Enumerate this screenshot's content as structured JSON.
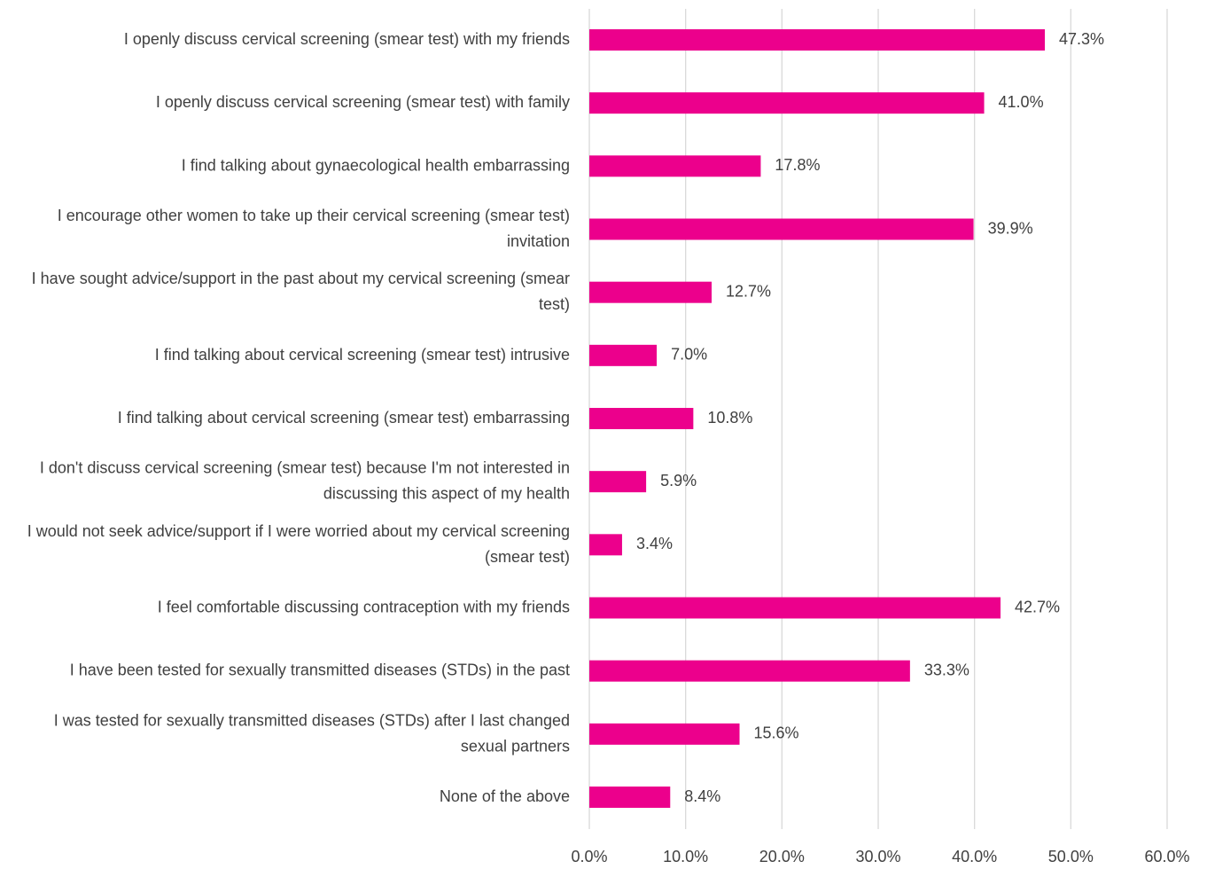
{
  "chart_data": {
    "type": "bar",
    "orientation": "horizontal",
    "categories": [
      "I openly discuss cervical screening (smear test) with my friends",
      "I openly discuss cervical screening (smear test) with family",
      "I find talking about gynaecological health embarrassing",
      "I encourage other women to take up their cervical screening (smear test) invitation",
      "I have sought advice/support in the past about my cervical screening (smear test)",
      "I find talking about cervical screening (smear test) intrusive",
      "I find talking about cervical screening (smear test) embarrassing",
      "I don't discuss cervical screening (smear test) because I'm not interested in discussing this aspect of my health",
      "I would not seek advice/support if I were worried about my cervical screening (smear test)",
      "I feel comfortable discussing contraception with my friends",
      "I have been tested for sexually transmitted diseases (STDs) in the past",
      "I was tested for sexually transmitted diseases (STDs) after I last changed sexual partners",
      "None of the above"
    ],
    "values": [
      47.3,
      41.0,
      17.8,
      39.9,
      12.7,
      7.0,
      10.8,
      5.9,
      3.4,
      42.7,
      33.3,
      15.6,
      8.4
    ],
    "value_labels": [
      "47.3%",
      "41.0%",
      "17.8%",
      "39.9%",
      "12.7%",
      "7.0%",
      "10.8%",
      "5.9%",
      "3.4%",
      "42.7%",
      "33.3%",
      "15.6%",
      "8.4%"
    ],
    "color": "#ec008c",
    "xlim": [
      0,
      60
    ],
    "xticks": [
      {
        "value": 0,
        "label": "0.0%"
      },
      {
        "value": 10,
        "label": "10.0%"
      },
      {
        "value": 20,
        "label": "20.0%"
      },
      {
        "value": 30,
        "label": "30.0%"
      },
      {
        "value": 40,
        "label": "40.0%"
      },
      {
        "value": 50,
        "label": "50.0%"
      },
      {
        "value": 60,
        "label": "60.0%"
      }
    ],
    "grid": true
  }
}
